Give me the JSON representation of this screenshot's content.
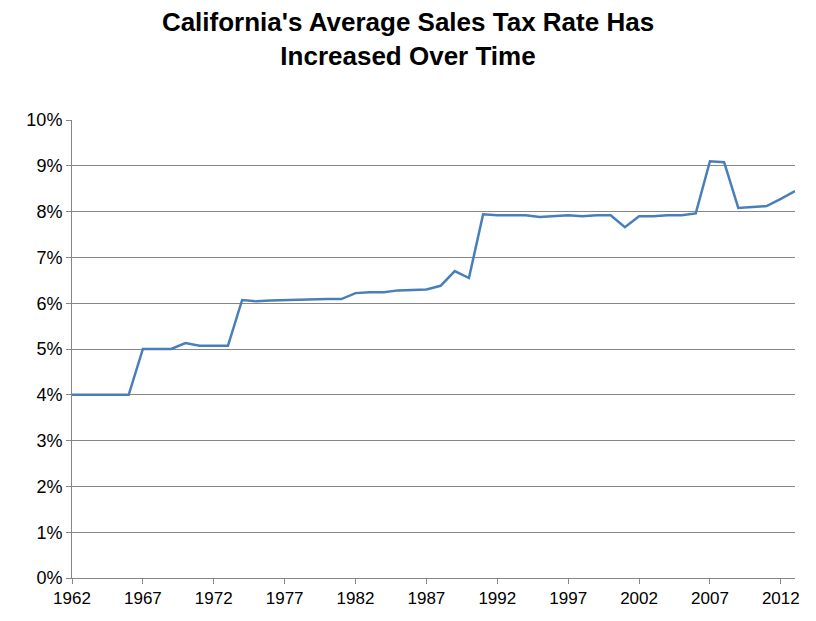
{
  "chart_data": {
    "type": "line",
    "title": "California's Average Sales Tax Rate Has\nIncreased Over Time",
    "x": [
      1962,
      1963,
      1964,
      1965,
      1966,
      1967,
      1968,
      1969,
      1970,
      1971,
      1972,
      1973,
      1974,
      1975,
      1976,
      1977,
      1978,
      1979,
      1980,
      1981,
      1982,
      1983,
      1984,
      1985,
      1986,
      1987,
      1988,
      1989,
      1990,
      1991,
      1992,
      1993,
      1994,
      1995,
      1996,
      1997,
      1998,
      1999,
      2000,
      2001,
      2002,
      2003,
      2004,
      2005,
      2006,
      2007,
      2008,
      2009,
      2010,
      2011,
      2012,
      2013
    ],
    "values": [
      4.0,
      4.0,
      4.0,
      4.0,
      4.0,
      5.0,
      5.0,
      5.0,
      5.13,
      5.07,
      5.07,
      5.07,
      6.07,
      6.04,
      6.06,
      6.07,
      6.07,
      6.08,
      6.09,
      6.09,
      6.22,
      6.24,
      6.24,
      6.28,
      6.29,
      6.3,
      6.38,
      6.7,
      6.55,
      7.94,
      7.92,
      7.92,
      7.92,
      7.88,
      7.9,
      7.92,
      7.9,
      7.92,
      7.92,
      7.66,
      7.9,
      7.9,
      7.92,
      7.92,
      7.96,
      9.1,
      9.08,
      8.08,
      8.1,
      8.12,
      8.28,
      8.45
    ],
    "color": "#4a7ebb",
    "xlim": [
      1962,
      2013
    ],
    "xticks": [
      1962,
      1967,
      1972,
      1977,
      1982,
      1987,
      1992,
      1997,
      2002,
      2007,
      2012
    ],
    "ylim": [
      0,
      10
    ],
    "yticks": [
      {
        "value": 0,
        "label": "0%"
      },
      {
        "value": 1,
        "label": "1%"
      },
      {
        "value": 2,
        "label": "2%"
      },
      {
        "value": 3,
        "label": "3%"
      },
      {
        "value": 4,
        "label": "4%"
      },
      {
        "value": 5,
        "label": "5%"
      },
      {
        "value": 6,
        "label": "6%"
      },
      {
        "value": 7,
        "label": "7%"
      },
      {
        "value": 8,
        "label": "8%"
      },
      {
        "value": 9,
        "label": "9%"
      },
      {
        "value": 10,
        "label": "10%"
      }
    ],
    "grid": true
  }
}
